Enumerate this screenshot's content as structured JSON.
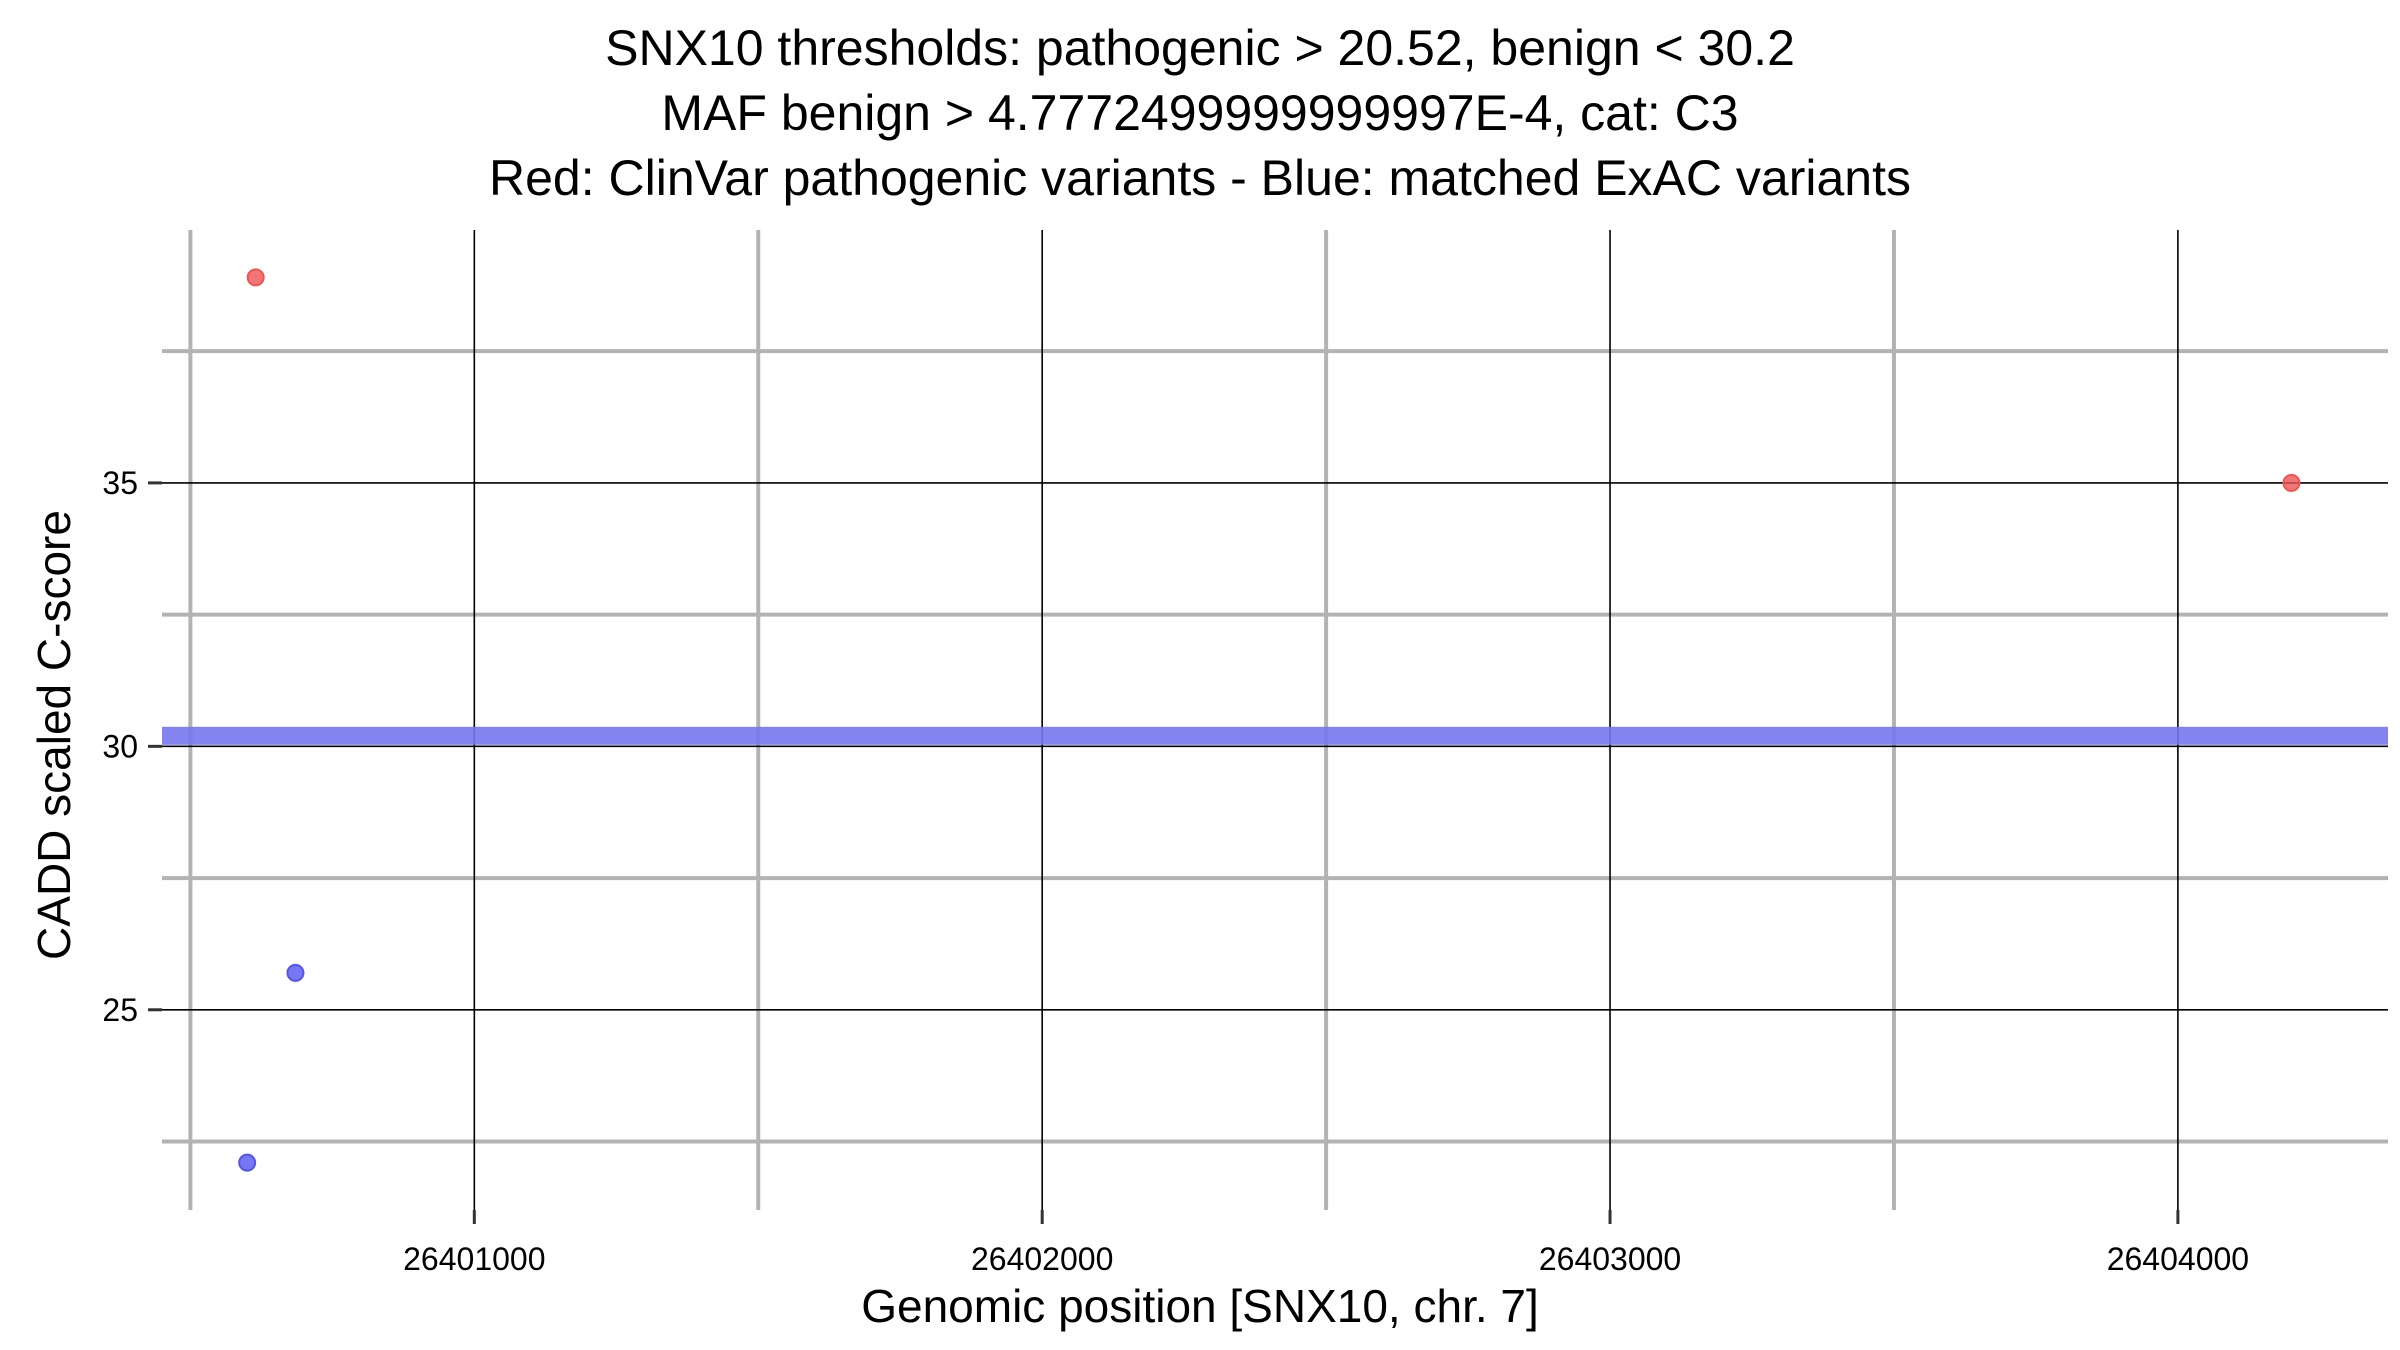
{
  "chart_data": {
    "type": "scatter",
    "title": [
      "SNX10 thresholds: pathogenic > 20.52, benign < 30.2",
      "MAF benign > 4.7772499999999997E-4, cat: C3",
      "Red: ClinVar pathogenic variants - Blue: matched ExAC variants"
    ],
    "xlabel": "Genomic position [SNX10, chr. 7]",
    "ylabel": "CADD scaled C-score",
    "xlim": [
      26400450,
      26404370
    ],
    "ylim": [
      21.2,
      39.8
    ],
    "x_ticks": [
      26401000,
      26402000,
      26403000,
      26404000
    ],
    "x_tick_labels": [
      "26401000",
      "26402000",
      "26403000",
      "26404000"
    ],
    "x_minor": [
      26400500,
      26401500,
      26402500,
      26403500
    ],
    "y_ticks": [
      25,
      30,
      35
    ],
    "y_tick_labels": [
      "25",
      "30",
      "35"
    ],
    "y_minor": [
      22.5,
      27.5,
      32.5,
      37.5
    ],
    "grid": true,
    "threshold_band": {
      "y": 30.2,
      "color": "#7777ee"
    },
    "series": [
      {
        "color": "#ee5555",
        "points": [
          {
            "x": 26400615,
            "y": 38.9
          },
          {
            "x": 26404200,
            "y": 35.0
          }
        ]
      },
      {
        "color": "#5555ee",
        "points": [
          {
            "x": 26400685,
            "y": 25.7
          },
          {
            "x": 26400600,
            "y": 22.1
          }
        ]
      }
    ]
  }
}
